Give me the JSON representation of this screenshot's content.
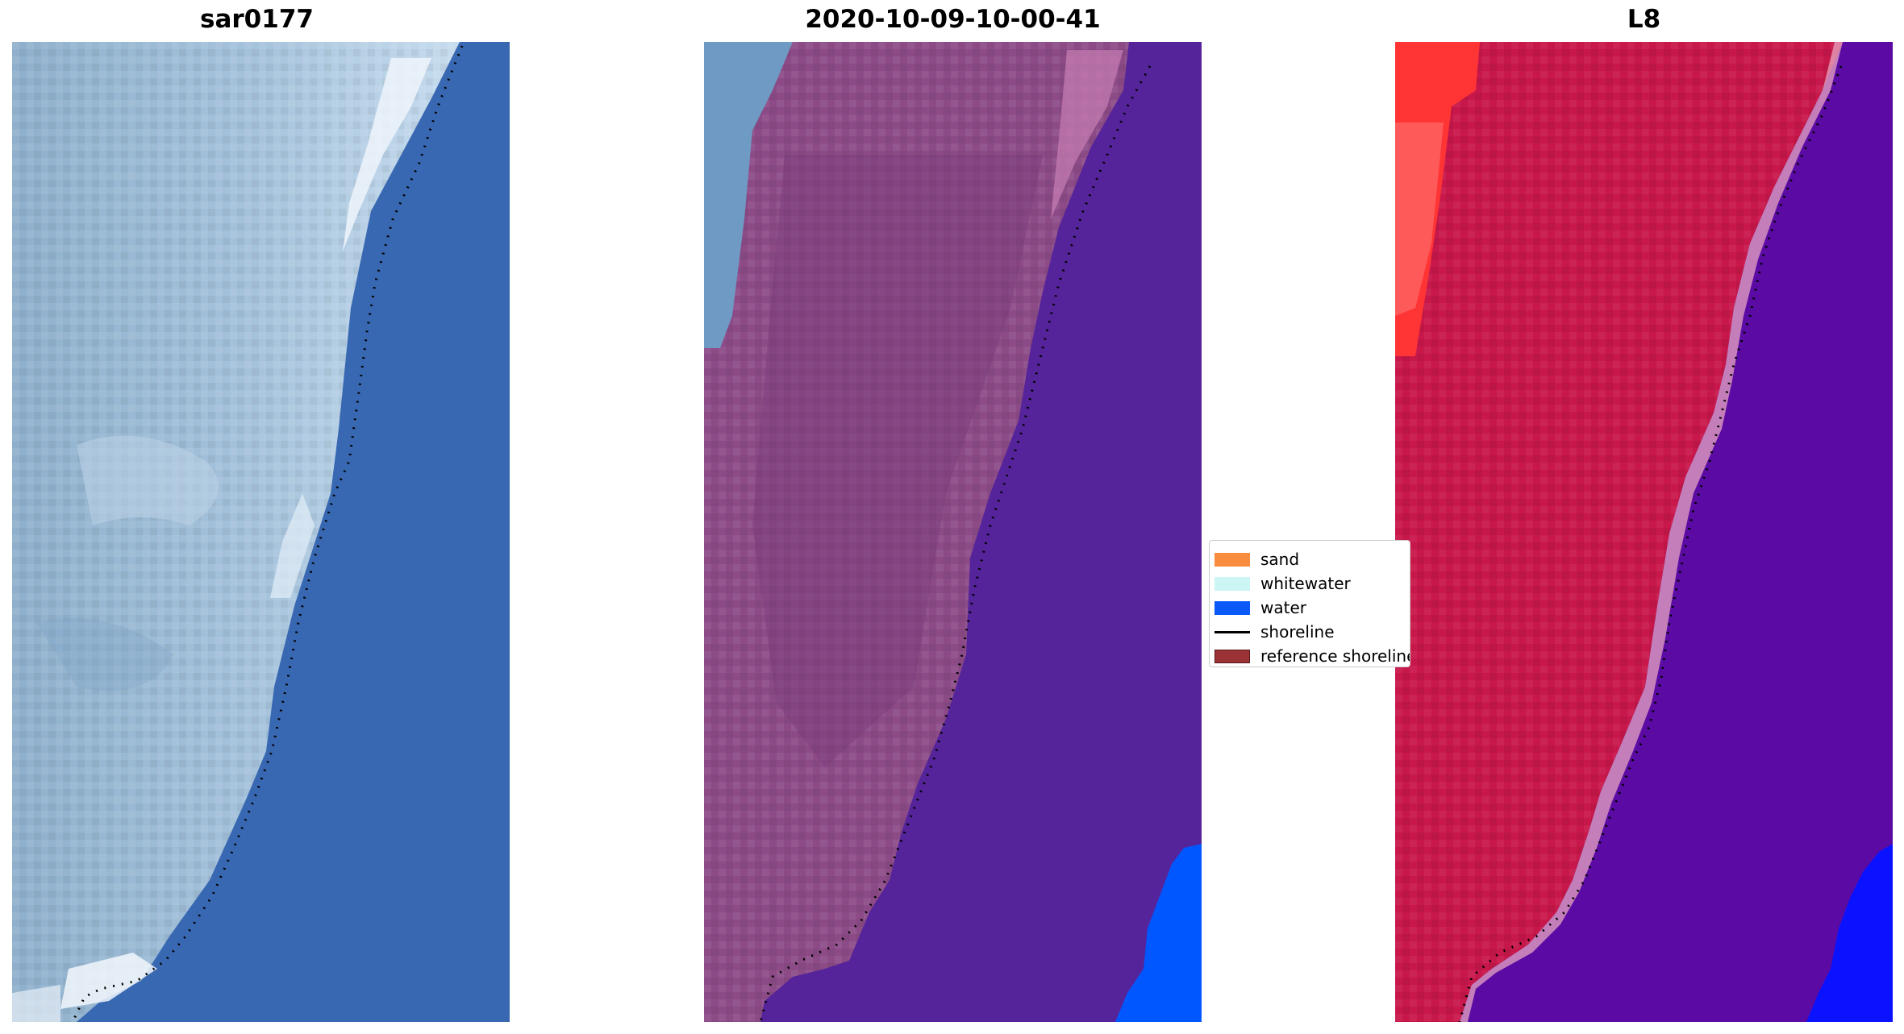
{
  "panels": [
    {
      "title": "sar0177",
      "image": "rgb-satellite-image"
    },
    {
      "title": "2020-10-09-10-00-41",
      "image": "classified-overlay-image"
    },
    {
      "title": "L8",
      "image": "mndwi-map-image"
    }
  ],
  "legend": {
    "items": [
      {
        "label": "sand",
        "color": "#f98d3f"
      },
      {
        "label": "whitewater",
        "color": "#ccf5f5"
      },
      {
        "label": "water",
        "color": "#0a5af9"
      },
      {
        "label": "shoreline",
        "color": "#000000"
      },
      {
        "label": "reference shoreline",
        "color": "#9a3236"
      }
    ]
  },
  "colors": {
    "sky_blue": "#3a67b0",
    "land_light": "#a9c4dc",
    "classified_land": "#8b4b85",
    "classified_water": "#56239a",
    "classified_water_bright": "#0055ff",
    "map_land": "#c8174a",
    "map_land_hot": "#ff3030",
    "map_water": "#5a0aa2",
    "map_water_bright": "#0010ff"
  }
}
